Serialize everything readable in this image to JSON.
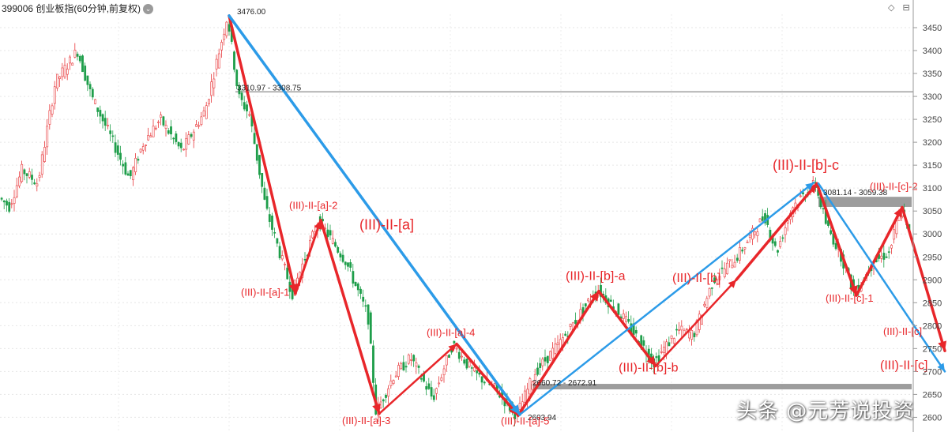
{
  "header": {
    "title": "399006 创业板指(60分钟,前复权)"
  },
  "watermark": "头条 @元芳说投资",
  "colors": {
    "up": "#e8373a",
    "down": "#1e9e4a",
    "red_wave": "#e8262a",
    "blue_wave": "#2c9be8",
    "zone": "#8c8c8c"
  },
  "chart_data": {
    "type": "candlestick",
    "ylim": [
      2580,
      3480
    ],
    "yticks": [
      2600,
      2650,
      2700,
      2750,
      2800,
      2850,
      2900,
      2950,
      3000,
      3050,
      3100,
      3150,
      3200,
      3250,
      3300,
      3350,
      3400,
      3450
    ],
    "price_labels": [
      {
        "text": "3476.00",
        "price": 3476
      },
      {
        "text": "3310.97 - 3308.75",
        "price": 3310
      },
      {
        "text": "3081.14 - 3059.38",
        "price": 3081
      },
      {
        "text": "2660.72 - 2672.91",
        "price": 2666
      },
      {
        "text": "2603.94",
        "price": 2604
      }
    ],
    "zones": [
      {
        "from": 3059,
        "to": 3081
      },
      {
        "from": 2661,
        "to": 2673
      }
    ],
    "hlines": [
      3310
    ],
    "wave_labels": [
      {
        "text": "(III)-II-[a]",
        "size": "big",
        "price": 3010
      },
      {
        "text": "(III)-II-[b]-c",
        "size": "big",
        "price": 3140
      },
      {
        "text": "(III)-II-[b]-a",
        "size": "mid",
        "price": 2900
      },
      {
        "text": "(III)-II-[b]-b",
        "size": "mid",
        "price": 2700
      },
      {
        "text": "(III)-II-[b]",
        "size": "mid",
        "price": 2895
      },
      {
        "text": "(III)-II-[c]",
        "size": "mid",
        "price": 2705
      },
      {
        "text": "(III)-II-[a]-1",
        "size": "small",
        "price": 2865
      },
      {
        "text": "(III)-II-[a]-2",
        "size": "small",
        "price": 3055
      },
      {
        "text": "(III)-II-[a]-3",
        "size": "small",
        "price": 2585
      },
      {
        "text": "(III)-II-[a]-4",
        "size": "small",
        "price": 2777
      },
      {
        "text": "(III)-II-[a]-5",
        "size": "small",
        "price": 2584
      },
      {
        "text": "(III)-II-[c]-1",
        "size": "small",
        "price": 2852
      },
      {
        "text": "(III)-II-[c]-2",
        "size": "small",
        "price": 3096
      },
      {
        "text": "(III)-II-[c]",
        "size": "small",
        "price": 2780
      }
    ]
  }
}
